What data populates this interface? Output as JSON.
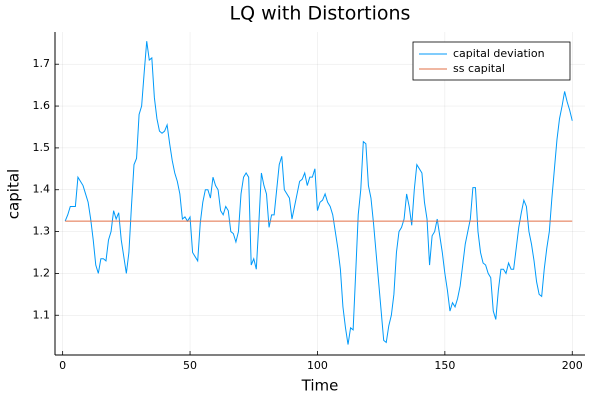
{
  "chart_data": {
    "type": "line",
    "title": "LQ with Distortions",
    "xlabel": "Time",
    "ylabel": "capital",
    "xlim": [
      -3,
      205
    ],
    "ylim": [
      1.005,
      1.777
    ],
    "xticks": [
      0,
      50,
      100,
      150,
      200
    ],
    "yticks": [
      1.1,
      1.2,
      1.3,
      1.4,
      1.5,
      1.6,
      1.7
    ],
    "grid": true,
    "legend": "top-right",
    "series": [
      {
        "name": "capital deviation",
        "color": "#009af9",
        "x": [
          1,
          2,
          3,
          4,
          5,
          6,
          7,
          8,
          9,
          10,
          11,
          12,
          13,
          14,
          15,
          16,
          17,
          18,
          19,
          20,
          21,
          22,
          23,
          24,
          25,
          26,
          27,
          28,
          29,
          30,
          31,
          32,
          33,
          34,
          35,
          36,
          37,
          38,
          39,
          40,
          41,
          42,
          43,
          44,
          45,
          46,
          47,
          48,
          49,
          50,
          51,
          52,
          53,
          54,
          55,
          56,
          57,
          58,
          59,
          60,
          61,
          62,
          63,
          64,
          65,
          66,
          67,
          68,
          69,
          70,
          71,
          72,
          73,
          74,
          75,
          76,
          77,
          78,
          79,
          80,
          81,
          82,
          83,
          84,
          85,
          86,
          87,
          88,
          89,
          90,
          91,
          92,
          93,
          94,
          95,
          96,
          97,
          98,
          99,
          100,
          101,
          102,
          103,
          104,
          105,
          106,
          107,
          108,
          109,
          110,
          111,
          112,
          113,
          114,
          115,
          116,
          117,
          118,
          119,
          120,
          121,
          122,
          123,
          124,
          125,
          126,
          127,
          128,
          129,
          130,
          131,
          132,
          133,
          134,
          135,
          136,
          137,
          138,
          139,
          140,
          141,
          142,
          143,
          144,
          145,
          146,
          147,
          148,
          149,
          150,
          151,
          152,
          153,
          154,
          155,
          156,
          157,
          158,
          159,
          160,
          161,
          162,
          163,
          164,
          165,
          166,
          167,
          168,
          169,
          170,
          171,
          172,
          173,
          174,
          175,
          176,
          177,
          178,
          179,
          180,
          181,
          182,
          183,
          184,
          185,
          186,
          187,
          188,
          189,
          190,
          191,
          192,
          193,
          194,
          195,
          196,
          197,
          198,
          199,
          200
        ],
        "values": [
          1.325,
          1.34,
          1.36,
          1.36,
          1.36,
          1.43,
          1.42,
          1.41,
          1.39,
          1.37,
          1.33,
          1.28,
          1.22,
          1.2,
          1.235,
          1.235,
          1.23,
          1.28,
          1.3,
          1.35,
          1.33,
          1.345,
          1.28,
          1.24,
          1.2,
          1.25,
          1.36,
          1.46,
          1.475,
          1.58,
          1.6,
          1.68,
          1.755,
          1.71,
          1.715,
          1.62,
          1.57,
          1.54,
          1.535,
          1.54,
          1.555,
          1.51,
          1.47,
          1.44,
          1.42,
          1.39,
          1.33,
          1.335,
          1.325,
          1.335,
          1.25,
          1.24,
          1.23,
          1.32,
          1.37,
          1.4,
          1.4,
          1.38,
          1.43,
          1.41,
          1.4,
          1.35,
          1.34,
          1.36,
          1.35,
          1.3,
          1.295,
          1.275,
          1.3,
          1.39,
          1.43,
          1.44,
          1.43,
          1.22,
          1.235,
          1.21,
          1.32,
          1.44,
          1.41,
          1.39,
          1.31,
          1.34,
          1.34,
          1.4,
          1.46,
          1.48,
          1.4,
          1.39,
          1.38,
          1.33,
          1.36,
          1.39,
          1.42,
          1.425,
          1.44,
          1.41,
          1.43,
          1.43,
          1.45,
          1.35,
          1.37,
          1.375,
          1.39,
          1.37,
          1.36,
          1.34,
          1.3,
          1.26,
          1.21,
          1.12,
          1.07,
          1.03,
          1.07,
          1.065,
          1.2,
          1.34,
          1.4,
          1.515,
          1.51,
          1.41,
          1.38,
          1.32,
          1.25,
          1.18,
          1.11,
          1.04,
          1.035,
          1.075,
          1.1,
          1.15,
          1.25,
          1.3,
          1.31,
          1.33,
          1.39,
          1.36,
          1.315,
          1.4,
          1.46,
          1.45,
          1.44,
          1.37,
          1.33,
          1.22,
          1.29,
          1.3,
          1.33,
          1.29,
          1.25,
          1.2,
          1.16,
          1.11,
          1.13,
          1.12,
          1.14,
          1.17,
          1.22,
          1.27,
          1.3,
          1.33,
          1.405,
          1.405,
          1.3,
          1.25,
          1.225,
          1.22,
          1.2,
          1.19,
          1.11,
          1.09,
          1.16,
          1.21,
          1.21,
          1.2,
          1.225,
          1.21,
          1.21,
          1.26,
          1.31,
          1.345,
          1.375,
          1.36,
          1.3,
          1.27,
          1.23,
          1.18,
          1.15,
          1.145,
          1.21,
          1.26,
          1.3,
          1.38,
          1.45,
          1.52,
          1.57,
          1.6,
          1.635,
          1.61,
          1.59,
          1.565
        ]
      },
      {
        "name": "ss capital",
        "color": "#e26f46",
        "x": [
          1,
          200
        ],
        "values": [
          1.325,
          1.325
        ]
      }
    ]
  }
}
